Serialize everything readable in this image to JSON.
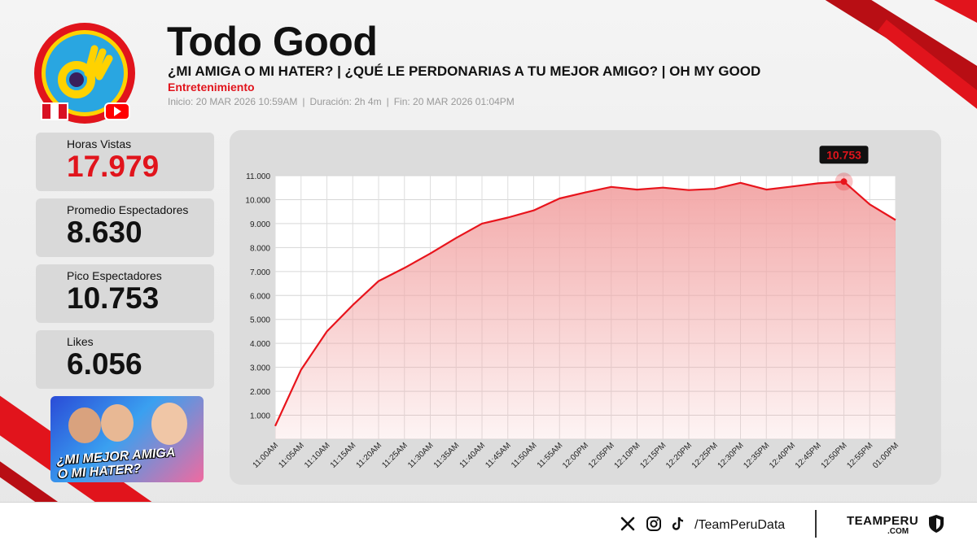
{
  "header": {
    "title": "Todo Good",
    "subtitle": "¿MI AMIGA O MI HATER? | ¿QUÉ LE PERDONARIAS A TU MEJOR AMIGO? | OH MY GOOD",
    "category": "Entretenimiento",
    "inicio": "Inicio: 20 MAR 2026 10:59AM",
    "duracion": "Duración: 2h 4m",
    "fin": "Fin: 20 MAR 2026 01:04PM",
    "separator": "|"
  },
  "stats": [
    {
      "label": "Horas Vistas",
      "value": "17.979",
      "highlight": true
    },
    {
      "label": "Promedio Espectadores",
      "value": "8.630",
      "highlight": false
    },
    {
      "label": "Pico Espectadores",
      "value": "10.753",
      "highlight": false
    },
    {
      "label": "Likes",
      "value": "6.056",
      "highlight": false
    }
  ],
  "thumbnail": {
    "line1": "¿MI MEJOR AMIGA",
    "line2": "O MI HATER?"
  },
  "footer": {
    "handle": "/TeamPeruData",
    "brand": "TEAMPERU",
    "brand_sub": ".COM",
    "icons": [
      "x-icon",
      "instagram-icon",
      "tiktok-icon"
    ]
  },
  "colors": {
    "accent": "#e1141c",
    "line": "#e8141c",
    "fill": "#f2a4a4"
  },
  "chart_data": {
    "type": "area",
    "x": [
      "11:00AM",
      "11:05AM",
      "11:10AM",
      "11:15AM",
      "11:20AM",
      "11:25AM",
      "11:30AM",
      "11:35AM",
      "11:40AM",
      "11:45AM",
      "11:50AM",
      "11:55AM",
      "12:00PM",
      "12:05PM",
      "12:10PM",
      "12:15PM",
      "12:20PM",
      "12:25PM",
      "12:30PM",
      "12:35PM",
      "12:40PM",
      "12:45PM",
      "12:50PM",
      "12:55PM",
      "01:00PM"
    ],
    "series": [
      {
        "values": [
          550,
          2900,
          4500,
          5600,
          6600,
          7150,
          7750,
          8400,
          9000,
          9250,
          9550,
          10050,
          10300,
          10530,
          10420,
          10500,
          10400,
          10450,
          10700,
          10420,
          10550,
          10680,
          10753,
          9800,
          9150
        ]
      }
    ],
    "ylim": [
      0,
      11000
    ],
    "yticks": [
      0,
      1000,
      2000,
      3000,
      4000,
      5000,
      6000,
      7000,
      8000,
      9000,
      10000,
      11000
    ],
    "ytick_labels": [
      "",
      "1.000",
      "2.000",
      "3.000",
      "4.000",
      "5.000",
      "6.000",
      "7.000",
      "8.000",
      "9.000",
      "10.000",
      "11.000"
    ],
    "peak_label": "10.753",
    "peak_index": 22,
    "grid": true
  }
}
